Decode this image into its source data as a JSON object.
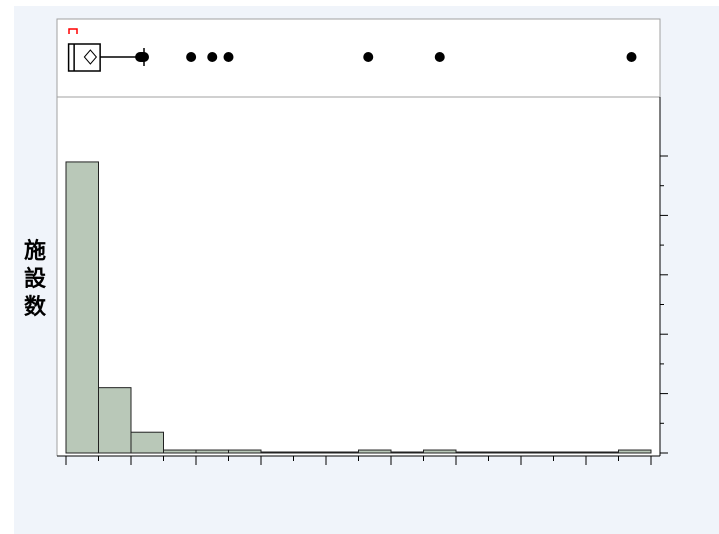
{
  "chart_data": {
    "type": "histogram",
    "ylabel": "施設数",
    "bins": [
      {
        "start": 0,
        "end": 10,
        "count": 98
      },
      {
        "start": 10,
        "end": 20,
        "count": 22
      },
      {
        "start": 20,
        "end": 30,
        "count": 7
      },
      {
        "start": 30,
        "end": 40,
        "count": 1
      },
      {
        "start": 40,
        "end": 50,
        "count": 1
      },
      {
        "start": 50,
        "end": 60,
        "count": 1
      },
      {
        "start": 60,
        "end": 70,
        "count": 0
      },
      {
        "start": 70,
        "end": 80,
        "count": 0
      },
      {
        "start": 80,
        "end": 90,
        "count": 0
      },
      {
        "start": 90,
        "end": 100,
        "count": 1
      },
      {
        "start": 100,
        "end": 110,
        "count": 0
      },
      {
        "start": 110,
        "end": 120,
        "count": 1
      },
      {
        "start": 120,
        "end": 130,
        "count": 0
      },
      {
        "start": 130,
        "end": 140,
        "count": 0
      },
      {
        "start": 140,
        "end": 150,
        "count": 0
      },
      {
        "start": 150,
        "end": 160,
        "count": 0
      },
      {
        "start": 160,
        "end": 170,
        "count": 0
      },
      {
        "start": 170,
        "end": 180,
        "count": 1
      }
    ],
    "xlim": [
      0,
      180
    ],
    "ylim": [
      0,
      110
    ],
    "x_ticks": [
      0,
      20,
      40,
      60,
      80,
      100,
      120,
      140,
      160,
      180
    ],
    "y_ticks": [
      0,
      20,
      40,
      60,
      80,
      100
    ],
    "y_axis_side": "right",
    "boxplot": {
      "q1": 0.8,
      "median": 2.5,
      "mean": 7.5,
      "q3": 10.5,
      "whisker_high": 24,
      "outliers": [
        22.8,
        23.2,
        23.6,
        24.0,
        38.5,
        45,
        50,
        93,
        115,
        174
      ]
    },
    "colors": {
      "bar_fill": "#b9c8b8",
      "bar_stroke": "#222222",
      "panel_bg": "#f0f4fa",
      "plot_bg": "#ffffff",
      "marker": "#ff0000"
    }
  }
}
